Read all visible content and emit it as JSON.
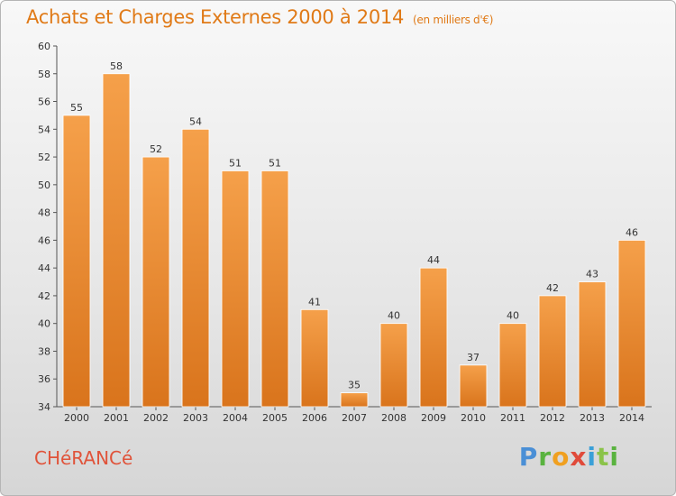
{
  "header": {
    "title": "Achats et Charges Externes 2000 à 2014",
    "subtitle": "(en milliers d'€)"
  },
  "footer": {
    "commune": "CHéRANCé",
    "brand": "Proxiti"
  },
  "colors": {
    "bar_light": "#f5a04a",
    "bar_dark": "#d9741c",
    "text": "#333333",
    "accent": "#e07a17"
  },
  "chart_data": {
    "type": "bar",
    "title": "Achats et Charges Externes 2000 à 2014",
    "subtitle": "(en milliers d'€)",
    "categories": [
      "2000",
      "2001",
      "2002",
      "2003",
      "2004",
      "2005",
      "2006",
      "2007",
      "2008",
      "2009",
      "2010",
      "2011",
      "2012",
      "2013",
      "2014"
    ],
    "values": [
      55,
      58,
      52,
      54,
      51,
      51,
      41,
      35,
      40,
      44,
      37,
      40,
      42,
      43,
      46
    ],
    "ylim": [
      34,
      60
    ],
    "yticks": [
      34,
      36,
      38,
      40,
      42,
      44,
      46,
      48,
      50,
      52,
      54,
      56,
      58,
      60
    ],
    "grid": false,
    "data_labels": true
  }
}
